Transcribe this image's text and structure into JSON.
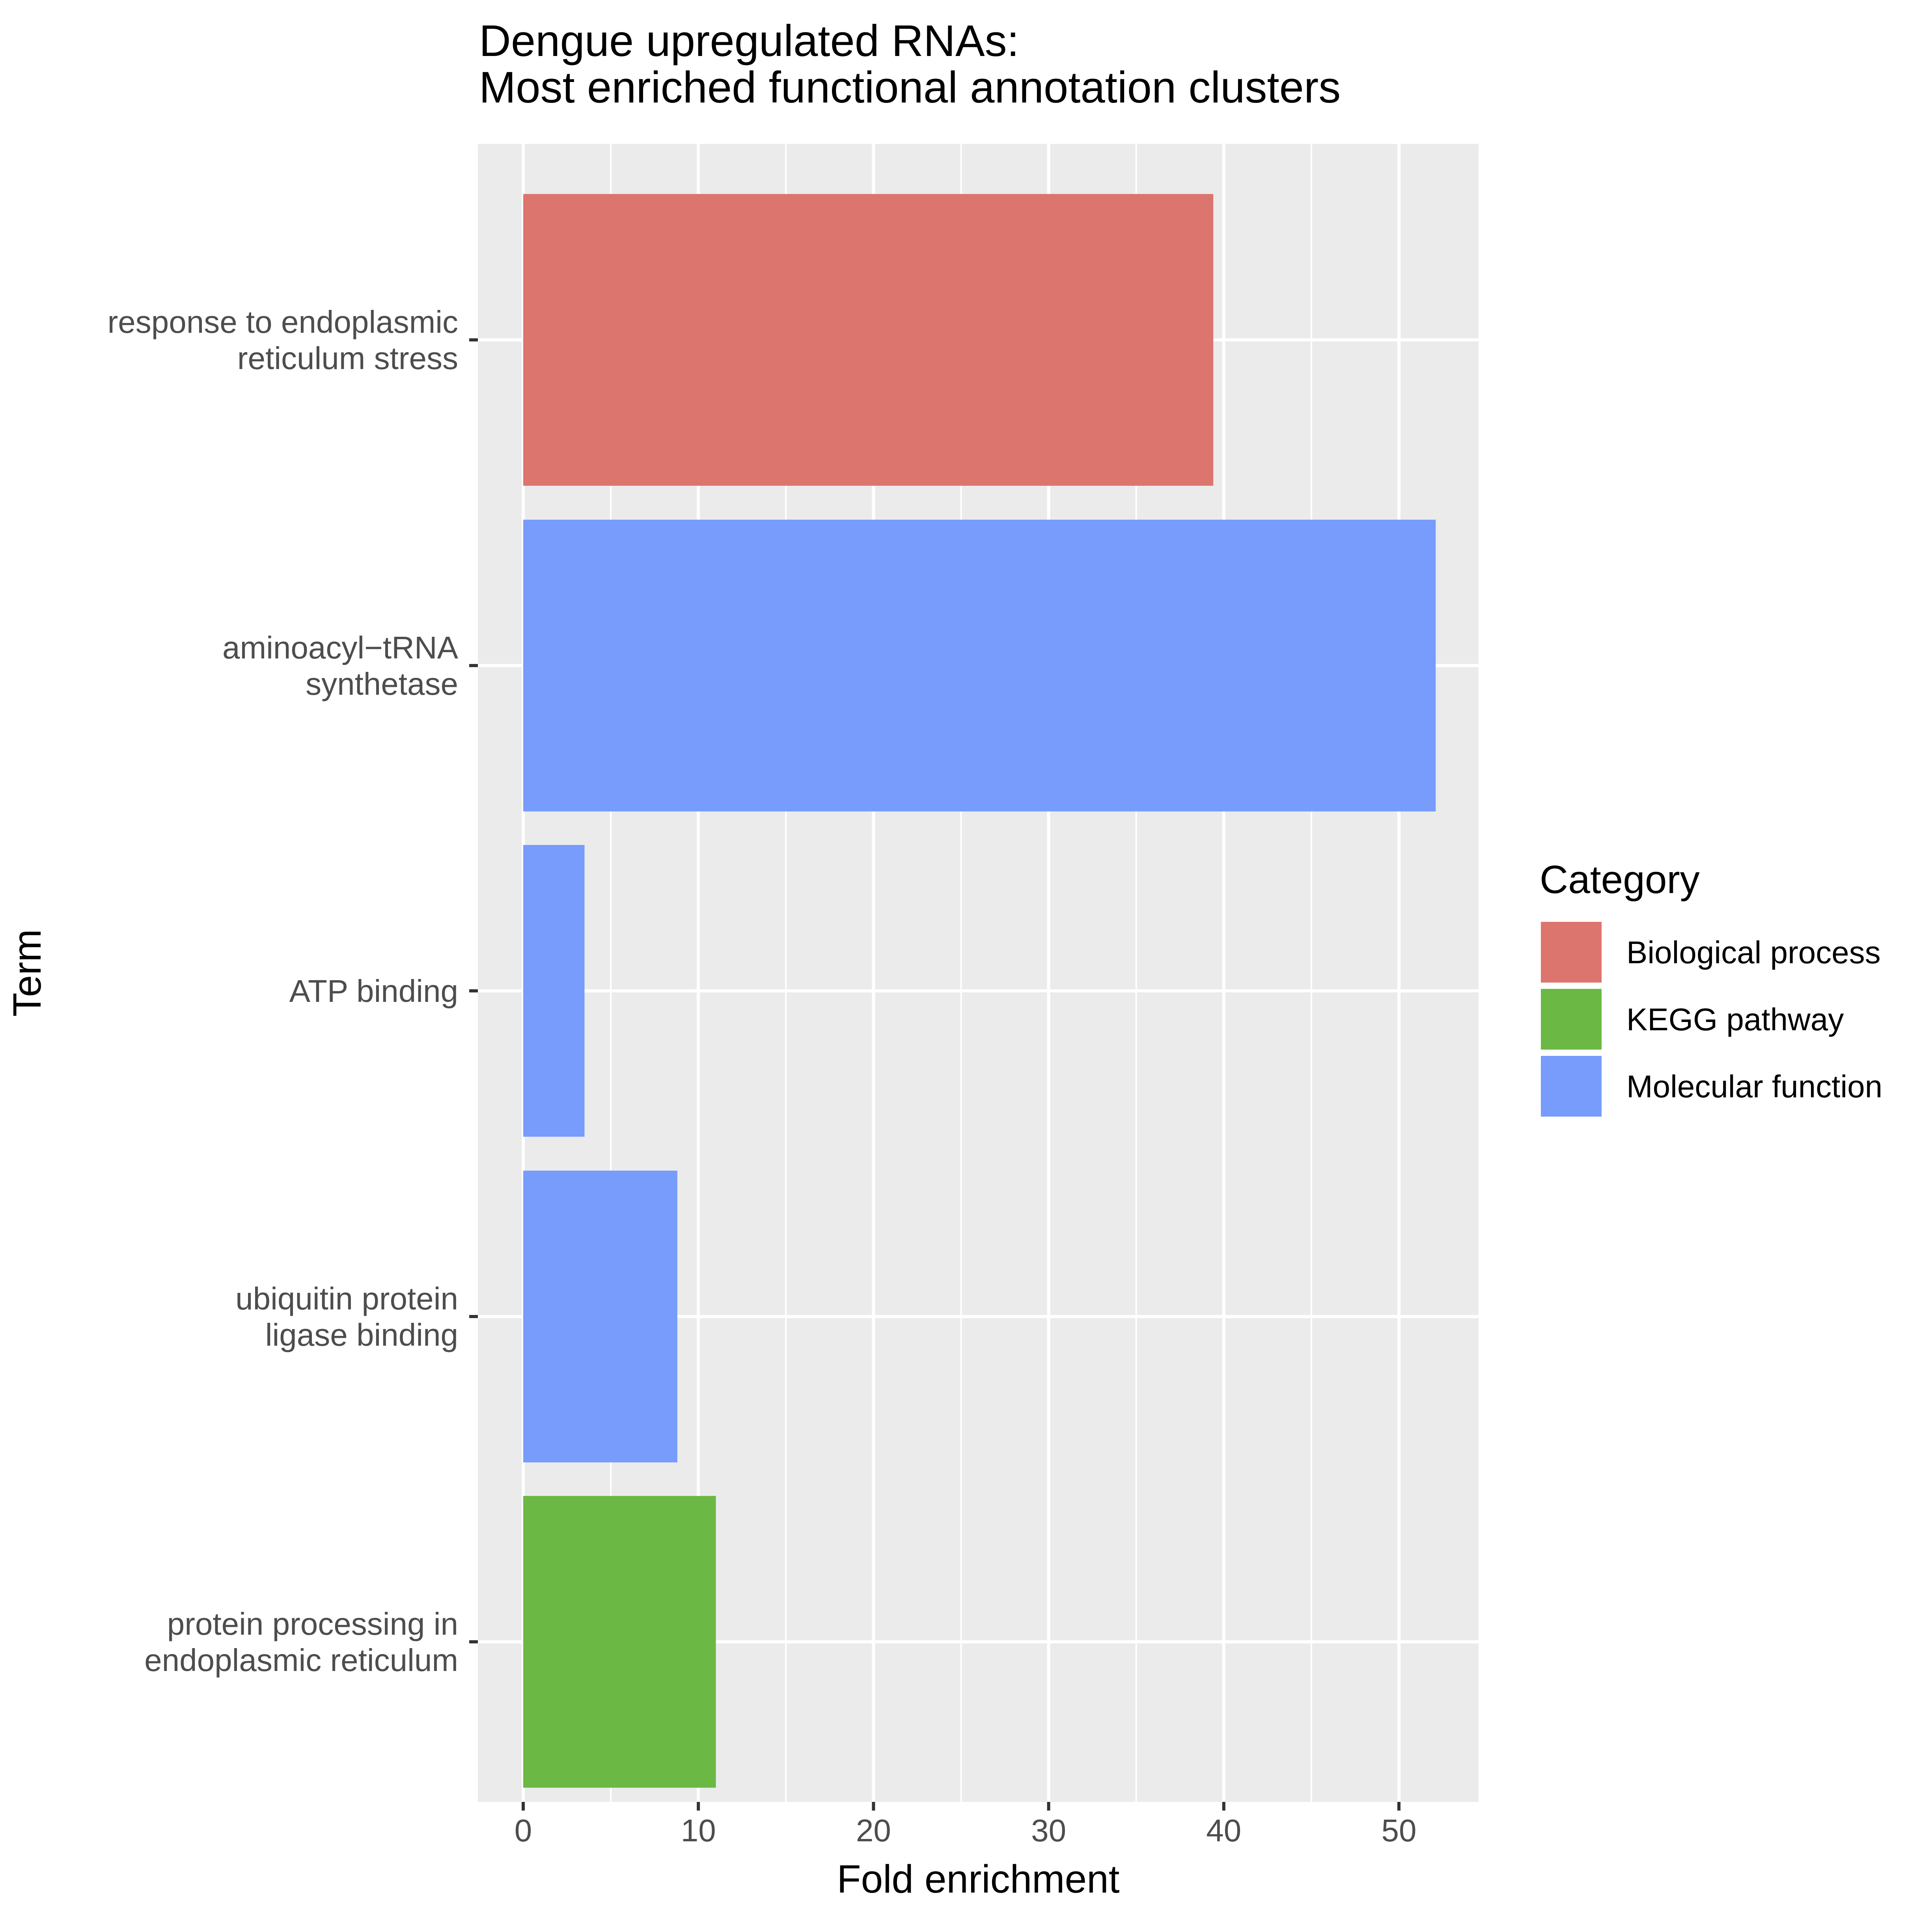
{
  "chart_data": {
    "type": "bar",
    "orientation": "horizontal",
    "title": [
      "Dengue upregulated RNAs:",
      "Most enriched functional annotation clusters"
    ],
    "xlabel": "Fold enrichment",
    "ylabel": "Term",
    "xlim": [
      0,
      55
    ],
    "x_ticks": [
      0,
      10,
      20,
      30,
      40,
      50
    ],
    "grid": true,
    "background": "#ebebeb",
    "categories": [
      {
        "label": [
          "response to endoplasmic",
          "reticulum stress"
        ],
        "value": 39.4,
        "category": "Biological process"
      },
      {
        "label": [
          "aminoacyl−tRNA",
          "synthetase"
        ],
        "value": 52.1,
        "category": "Molecular function"
      },
      {
        "label": [
          "ATP binding"
        ],
        "value": 3.5,
        "category": "Molecular function"
      },
      {
        "label": [
          "ubiquitin protein",
          "ligase binding"
        ],
        "value": 8.8,
        "category": "Molecular function"
      },
      {
        "label": [
          "protein processing in",
          "endoplasmic reticulum"
        ],
        "value": 11.0,
        "category": "KEGG pathway"
      }
    ],
    "legend": {
      "title": "Category",
      "placement": "right",
      "items": [
        {
          "name": "Biological process",
          "color": "#dc756e"
        },
        {
          "name": "KEGG pathway",
          "color": "#6bb845"
        },
        {
          "name": "Molecular function",
          "color": "#779cfb"
        }
      ]
    }
  }
}
